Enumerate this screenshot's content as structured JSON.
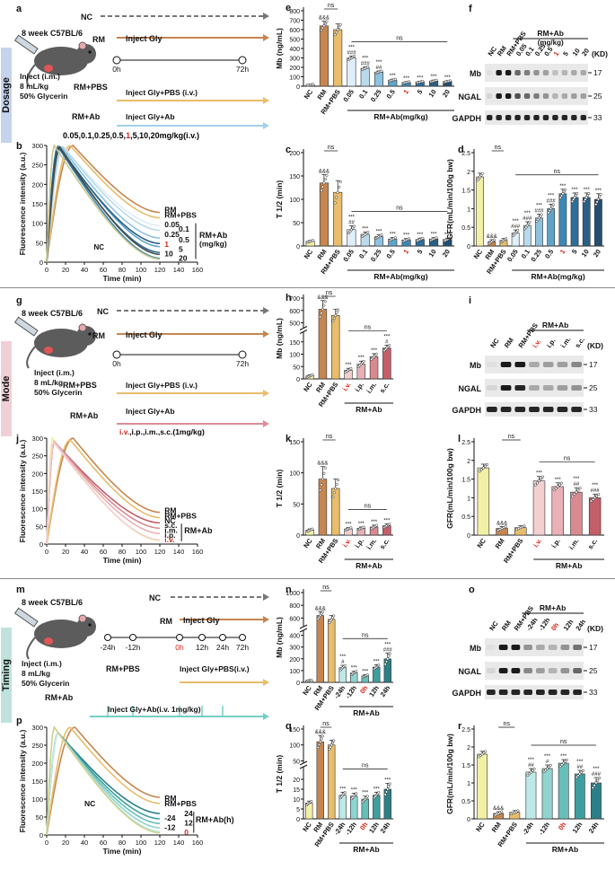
{
  "sections": {
    "dosage": {
      "label": "Dosage",
      "color": "#6a8cc7"
    },
    "mode": {
      "label": "Mode",
      "color": "#d88a98"
    },
    "timing": {
      "label": "Timing",
      "color": "#4aa79a"
    }
  },
  "colors": {
    "nc": "#f1f0a5",
    "rm": "#c68650",
    "pbs": "#e8bd6b",
    "v1": "#dfeef9",
    "v2": "#b9d9ec",
    "v3": "#8ec2de",
    "v4": "#5fa3c9",
    "v5": "#3b88b5",
    "v6": "#2d6e9b",
    "v7": "#2a5f86",
    "m1": "#f3cfcf",
    "m2": "#e9b1b5",
    "m3": "#d98a91",
    "m4": "#c45e68",
    "t1": "#bfe9e6",
    "t2": "#8fd4cf",
    "t3": "#66bfb9",
    "t4": "#3e9fa0",
    "t5": "#2b8087"
  },
  "common": {
    "strain": "8 week C57BL/6",
    "inject_lines": [
      "Inject (i.m.)",
      "8 mL/kg",
      "50% Glycerin"
    ],
    "nc": "NC",
    "rm": "RM",
    "rmpbs": "RM+PBS",
    "rmab": "RM+Ab",
    "inject_gly": "Inject Gly",
    "h0": "0h",
    "h72": "72h",
    "mb_label": "Mb (ng/mL)",
    "t12_label": "T 1/2 (min)",
    "gfr_label": "GFR(mL/min/100g bw)",
    "fi_label": "Fluorescence intensity (a.u.)",
    "time_label": "Time (min)",
    "wb_rows": [
      "Mb",
      "NGAL",
      "GAPDH"
    ],
    "kd": "(KD)",
    "kd_vals": [
      "17",
      "25",
      "33"
    ],
    "ns": "ns"
  },
  "panel_a": {
    "letter": "a",
    "pbs_text": "Inject Gly+PBS (i.v.)",
    "ab_text": "Inject Gly+Ab",
    "dose_prefix": "0.05,0.1,0.25,0.5,",
    "dose_red": "1",
    "dose_suffix": ",5,10,20mg/kg(i.v.)"
  },
  "panel_b": {
    "letter": "b",
    "series_labels": [
      "0.05",
      "0.1",
      "0.25",
      "0.5",
      "1",
      "5",
      "10",
      "20"
    ],
    "group_label": "RM+Ab",
    "group_unit": "(mg/kg)",
    "nc_label": "NC"
  },
  "panel_g": {
    "letter": "g",
    "pbs_text": "Inject Gly+PBS (i.v.)",
    "ab_text": "Inject Gly+Ab",
    "routes_red": "i.v.",
    "routes_rest": ",i.p.,i.m.,s.c.(1mg/kg)"
  },
  "panel_j": {
    "letter": "j",
    "labels": [
      "RM",
      "RM+PBS",
      "NC",
      "s.c.",
      "i.m.",
      "i.p.",
      "i.v."
    ],
    "group_label": "RM+Ab"
  },
  "panel_m": {
    "letter": "m",
    "ticks": [
      "-24h",
      "-12h",
      "0h",
      "12h",
      "24h",
      "72h"
    ],
    "pbs_text": "Inject Gly+PBS(i.v.)",
    "ab_text": "Inject Gly+Ab(i.v. 1mg/kg)"
  },
  "panel_p": {
    "letter": "p",
    "labels": [
      "RM",
      "RM+PBS",
      "24",
      "-24",
      "12",
      "-12",
      "0"
    ],
    "group_label": "RM+Ab(h)",
    "nc_label": "NC"
  },
  "chart_data": [
    {
      "id": "b",
      "type": "line",
      "title": "",
      "xlabel": "Time (min)",
      "ylabel": "Fluorescence intensity (a.u.)",
      "xlim": [
        0,
        160
      ],
      "ylim": [
        0,
        300
      ],
      "xticks": [
        0,
        20,
        40,
        60,
        80,
        100,
        120,
        140,
        160
      ],
      "yticks": [
        0,
        50,
        100,
        150,
        200,
        250,
        300
      ],
      "series": [
        {
          "name": "RM",
          "peak": 300,
          "tpeak": 28,
          "end": 128,
          "color": "#c68650"
        },
        {
          "name": "RM+PBS",
          "peak": 300,
          "tpeak": 25,
          "end": 114,
          "color": "#e8bd6b"
        },
        {
          "name": "0.05",
          "peak": 296,
          "tpeak": 18,
          "end": 94,
          "color": "#dfeef9"
        },
        {
          "name": "0.1",
          "peak": 297,
          "tpeak": 17,
          "end": 82,
          "color": "#b9d9ec"
        },
        {
          "name": "0.25",
          "peak": 298,
          "tpeak": 15,
          "end": 62,
          "color": "#8ec2de"
        },
        {
          "name": "0.5",
          "peak": 296,
          "tpeak": 14,
          "end": 40,
          "color": "#5fa3c9"
        },
        {
          "name": "1",
          "peak": 297,
          "tpeak": 12,
          "end": 10,
          "color": "#3b88b5"
        },
        {
          "name": "5",
          "peak": 298,
          "tpeak": 12,
          "end": 25,
          "color": "#2d6e9b"
        },
        {
          "name": "10",
          "peak": 295,
          "tpeak": 13,
          "end": 48,
          "color": "#2a5f86"
        },
        {
          "name": "20",
          "peak": 296,
          "tpeak": 14,
          "end": 20,
          "color": "#4a4a4a"
        },
        {
          "name": "NC",
          "peak": 300,
          "tpeak": 8,
          "end": 8,
          "color": "#c9c78a"
        }
      ]
    },
    {
      "id": "e",
      "type": "bar",
      "ylabel": "Mb (ng/mL)",
      "ylim": [
        0,
        800
      ],
      "yticks": [
        0,
        100,
        200,
        300,
        400,
        500,
        600,
        700,
        800
      ],
      "categories": [
        "NC",
        "RM",
        "RM+PBS",
        "0.05",
        "0.1",
        "0.25",
        "0.5",
        "1",
        "5",
        "10",
        "20"
      ],
      "red_category": "1",
      "group_label": "RM+Ab(mg/kg)",
      "values": [
        15,
        640,
        600,
        300,
        190,
        150,
        65,
        40,
        45,
        55,
        50
      ],
      "errors": [
        5,
        50,
        60,
        20,
        15,
        12,
        10,
        8,
        8,
        10,
        8
      ],
      "marks": [
        "",
        "&&&",
        "",
        "***\n###",
        "***\n###",
        "***\n##",
        "***",
        "***",
        "***",
        "***",
        "***"
      ]
    },
    {
      "id": "c",
      "type": "bar",
      "ylabel": "T 1/2 (min)",
      "ylim": [
        0,
        200
      ],
      "yticks": [
        0,
        50,
        100,
        150,
        200
      ],
      "categories": [
        "NC",
        "RM",
        "RM+PBS",
        "0.05",
        "0.1",
        "0.25",
        "0.5",
        "1",
        "5",
        "10",
        "20"
      ],
      "red_category": "1",
      "group_label": "RM+Ab(mg/kg)",
      "values": [
        10,
        135,
        115,
        35,
        25,
        20,
        15,
        13,
        14,
        15,
        14
      ],
      "errors": [
        2,
        18,
        25,
        8,
        5,
        4,
        3,
        3,
        3,
        3,
        3
      ],
      "marks": [
        "",
        "&&&",
        "",
        "***\n##",
        "***",
        "***",
        "***",
        "***",
        "***",
        "***",
        "***"
      ]
    },
    {
      "id": "d",
      "type": "bar",
      "ylabel": "GFR(mL/min/100g bw)",
      "ylim": [
        0,
        2.5
      ],
      "yticks": [
        0,
        0.5,
        1.0,
        1.5,
        2.0,
        2.5
      ],
      "categories": [
        "NC",
        "RM",
        "RM+PBS",
        "0.05",
        "0.1",
        "0.25",
        "0.5",
        "1",
        "5",
        "10",
        "20"
      ],
      "red_category": "1",
      "group_label": "RM+Ab(mg/kg)",
      "values": [
        1.85,
        0.12,
        0.15,
        0.35,
        0.55,
        0.75,
        1.0,
        1.4,
        1.3,
        1.3,
        1.25
      ],
      "errors": [
        0.1,
        0.05,
        0.05,
        0.08,
        0.1,
        0.1,
        0.12,
        0.12,
        0.12,
        0.12,
        0.15
      ],
      "marks": [
        "",
        "&&&",
        "",
        "***\n###",
        "***\n###",
        "***\n###",
        "***\n###",
        "***",
        "***",
        "***",
        "***"
      ]
    },
    {
      "id": "h",
      "type": "bar",
      "ylabel": "Mb (ng/mL)",
      "ylim": [
        0,
        700
      ],
      "yticks": [
        0,
        50,
        100,
        150,
        500,
        600,
        700
      ],
      "break": [
        180,
        450
      ],
      "categories": [
        "NC",
        "RM",
        "RM+PBS",
        "i.v.",
        "i.p.",
        "i.m.",
        "s.c."
      ],
      "red_category": "i.v.",
      "group_label": "RM+Ab",
      "values": [
        12,
        610,
        560,
        35,
        60,
        90,
        125
      ],
      "errors": [
        5,
        70,
        50,
        8,
        12,
        12,
        12
      ],
      "marks": [
        "",
        "&&&",
        "",
        "***",
        "***",
        "***",
        "***\n#"
      ]
    },
    {
      "id": "k",
      "type": "bar",
      "ylabel": "T 1/2 (min)",
      "ylim": [
        0,
        150
      ],
      "yticks": [
        0,
        50,
        100,
        150
      ],
      "categories": [
        "NC",
        "RM",
        "RM+PBS",
        "i.v.",
        "i.p.",
        "i.m.",
        "s.c."
      ],
      "red_category": "i.v.",
      "group_label": "RM+Ab",
      "values": [
        8,
        90,
        75,
        10,
        11,
        13,
        15
      ],
      "errors": [
        2,
        20,
        15,
        2,
        2,
        3,
        3
      ],
      "marks": [
        "",
        "&&&",
        "",
        "***",
        "***",
        "***",
        "***"
      ]
    },
    {
      "id": "l",
      "type": "bar",
      "ylabel": "GFR(mL/min/100g bw)",
      "ylim": [
        0,
        2.5
      ],
      "yticks": [
        0,
        0.5,
        1.0,
        1.5,
        2.0,
        2.5
      ],
      "categories": [
        "NC",
        "RM",
        "RM+PBS",
        "i.v.",
        "i.p.",
        "i.m.",
        "s.c."
      ],
      "red_category": "i.v.",
      "group_label": "RM+Ab",
      "values": [
        1.8,
        0.18,
        0.2,
        1.45,
        1.3,
        1.15,
        1.0
      ],
      "errors": [
        0.1,
        0.05,
        0.05,
        0.12,
        0.1,
        0.12,
        0.1
      ],
      "marks": [
        "",
        "&&&",
        "",
        "***",
        "***",
        "***\n##",
        "***\n###"
      ]
    },
    {
      "id": "n",
      "type": "bar",
      "ylabel": "Mb (ng/mL)",
      "ylim": [
        0,
        1000
      ],
      "yticks": [
        0,
        100,
        200,
        300,
        400,
        600,
        800,
        1000
      ],
      "break": [
        420,
        450
      ],
      "categories": [
        "NC",
        "RM",
        "RM+PBS",
        "-24h",
        "-12h",
        "0h",
        "12h",
        "24h"
      ],
      "red_category": "0h",
      "group_label": "RM+Ab",
      "values": [
        15,
        640,
        580,
        125,
        80,
        55,
        130,
        200
      ],
      "errors": [
        5,
        60,
        60,
        20,
        15,
        10,
        20,
        50
      ],
      "marks": [
        "",
        "&&&",
        "",
        "***\n#",
        "***",
        "***",
        "***",
        "***\n###"
      ]
    },
    {
      "id": "q",
      "type": "bar",
      "ylabel": "T 1/2 (min)",
      "ylim": [
        0,
        150
      ],
      "yticks": [
        0,
        5,
        10,
        15,
        20,
        50,
        100,
        150
      ],
      "break": [
        25,
        40
      ],
      "categories": [
        "NC",
        "RM",
        "RM+PBS",
        "-24h",
        "-12h",
        "0h",
        "12h",
        "24h"
      ],
      "red_category": "0h",
      "group_label": "RM+Ab",
      "values": [
        8,
        110,
        100,
        12,
        11.5,
        10,
        12,
        15
      ],
      "errors": [
        1,
        20,
        15,
        1.5,
        1.5,
        1.5,
        1.5,
        3
      ],
      "marks": [
        "",
        "&&&",
        "",
        "***",
        "***",
        "***",
        "***",
        "***"
      ]
    },
    {
      "id": "r",
      "type": "bar",
      "ylabel": "GFR(mL/min/100g bw)",
      "ylim": [
        0,
        2.5
      ],
      "yticks": [
        0,
        0.5,
        1.0,
        1.5,
        2.0,
        2.5
      ],
      "categories": [
        "NC",
        "RM",
        "RM+PBS",
        "-24h",
        "-12h",
        "0h",
        "12h",
        "24h"
      ],
      "red_category": "0h",
      "group_label": "RM+Ab",
      "values": [
        1.8,
        0.15,
        0.18,
        1.3,
        1.4,
        1.55,
        1.25,
        1.0
      ],
      "errors": [
        0.08,
        0.05,
        0.05,
        0.1,
        0.1,
        0.1,
        0.1,
        0.15
      ],
      "marks": [
        "",
        "&&&",
        "",
        "***\n##",
        "***\n#",
        "***",
        "***\n##",
        "***\n###"
      ]
    },
    {
      "id": "j",
      "type": "line",
      "xlabel": "Time (min)",
      "ylabel": "Fluorescence intensity (a.u.)",
      "xlim": [
        0,
        160
      ],
      "ylim": [
        0,
        300
      ],
      "xticks": [
        0,
        20,
        40,
        60,
        80,
        100,
        120,
        140,
        160
      ],
      "yticks": [
        0,
        50,
        100,
        150,
        200,
        250,
        300
      ],
      "series": [
        {
          "name": "RM",
          "peak": 300,
          "tpeak": 28,
          "end": 90,
          "color": "#c68650"
        },
        {
          "name": "RM+PBS",
          "peak": 295,
          "tpeak": 25,
          "end": 75,
          "color": "#e8bd6b"
        },
        {
          "name": "NC",
          "peak": 300,
          "tpeak": 6,
          "end": 10,
          "color": "#f1f0a5"
        },
        {
          "name": "s.c.",
          "peak": 290,
          "tpeak": 8,
          "end": 60,
          "color": "#c45e68"
        },
        {
          "name": "i.m.",
          "peak": 290,
          "tpeak": 8,
          "end": 45,
          "color": "#d98a91"
        },
        {
          "name": "i.p.",
          "peak": 290,
          "tpeak": 8,
          "end": 30,
          "color": "#e9b1b5"
        },
        {
          "name": "i.v.",
          "peak": 290,
          "tpeak": 7,
          "end": 12,
          "color": "#f3cfcf"
        }
      ]
    },
    {
      "id": "p",
      "type": "line",
      "xlabel": "Time (min)",
      "ylabel": "Fluorescence intensity (a.u.)",
      "xlim": [
        0,
        160
      ],
      "ylim": [
        0,
        300
      ],
      "xticks": [
        0,
        20,
        40,
        60,
        80,
        100,
        120,
        140,
        160
      ],
      "yticks": [
        0,
        50,
        100,
        150,
        200,
        250,
        300
      ],
      "series": [
        {
          "name": "RM",
          "peak": 300,
          "tpeak": 30,
          "end": 105,
          "color": "#c68650"
        },
        {
          "name": "RM+PBS",
          "peak": 300,
          "tpeak": 25,
          "end": 88,
          "color": "#e8bd6b"
        },
        {
          "name": "24",
          "peak": 285,
          "tpeak": 12,
          "end": 60,
          "color": "#2b8087"
        },
        {
          "name": "-24",
          "peak": 285,
          "tpeak": 12,
          "end": 45,
          "color": "#3e9fa0"
        },
        {
          "name": "12",
          "peak": 285,
          "tpeak": 12,
          "end": 32,
          "color": "#66bfb9"
        },
        {
          "name": "-12",
          "peak": 285,
          "tpeak": 12,
          "end": 20,
          "color": "#8fd4cf"
        },
        {
          "name": "0",
          "peak": 285,
          "tpeak": 12,
          "end": 10,
          "color": "#bfe9e6"
        },
        {
          "name": "NC",
          "peak": 300,
          "tpeak": 8,
          "end": 6,
          "color": "#cfcf8a"
        }
      ]
    }
  ],
  "western": {
    "f": {
      "letter": "f",
      "lanes": [
        "NC",
        "RM",
        "RM+PBS",
        "0.05",
        "0.1",
        "0.25",
        "0.5",
        "1",
        "5",
        "10",
        "20"
      ],
      "red_lane": "1",
      "group_label": "RM+Ab",
      "group_unit": "(mg/kg)",
      "mb": [
        0.05,
        0.95,
        0.95,
        0.6,
        0.5,
        0.4,
        0.35,
        0.2,
        0.25,
        0.3,
        0.3
      ],
      "ngal": [
        0.1,
        0.95,
        0.95,
        0.7,
        0.6,
        0.5,
        0.4,
        0.25,
        0.3,
        0.35,
        0.35
      ]
    },
    "i": {
      "letter": "i",
      "lanes": [
        "NC",
        "RM",
        "RM+PBS",
        "i.v.",
        "i.p.",
        "i.m.",
        "s.c."
      ],
      "red_lane": "i.v.",
      "group_label": "RM+Ab",
      "mb": [
        0.05,
        0.95,
        0.95,
        0.3,
        0.35,
        0.35,
        0.45
      ],
      "ngal": [
        0.1,
        0.95,
        0.9,
        0.3,
        0.3,
        0.35,
        0.4
      ]
    },
    "o": {
      "letter": "o",
      "lanes": [
        "NC",
        "RM",
        "RM+PBS",
        "-24h",
        "-12h",
        "0h",
        "12h",
        "24h"
      ],
      "red_lane": "0h",
      "group_label": "RM+Ab",
      "mb": [
        0.05,
        0.95,
        0.95,
        0.4,
        0.3,
        0.25,
        0.4,
        0.55
      ],
      "ngal": [
        0.1,
        0.95,
        0.95,
        0.45,
        0.35,
        0.25,
        0.4,
        0.6
      ]
    }
  }
}
